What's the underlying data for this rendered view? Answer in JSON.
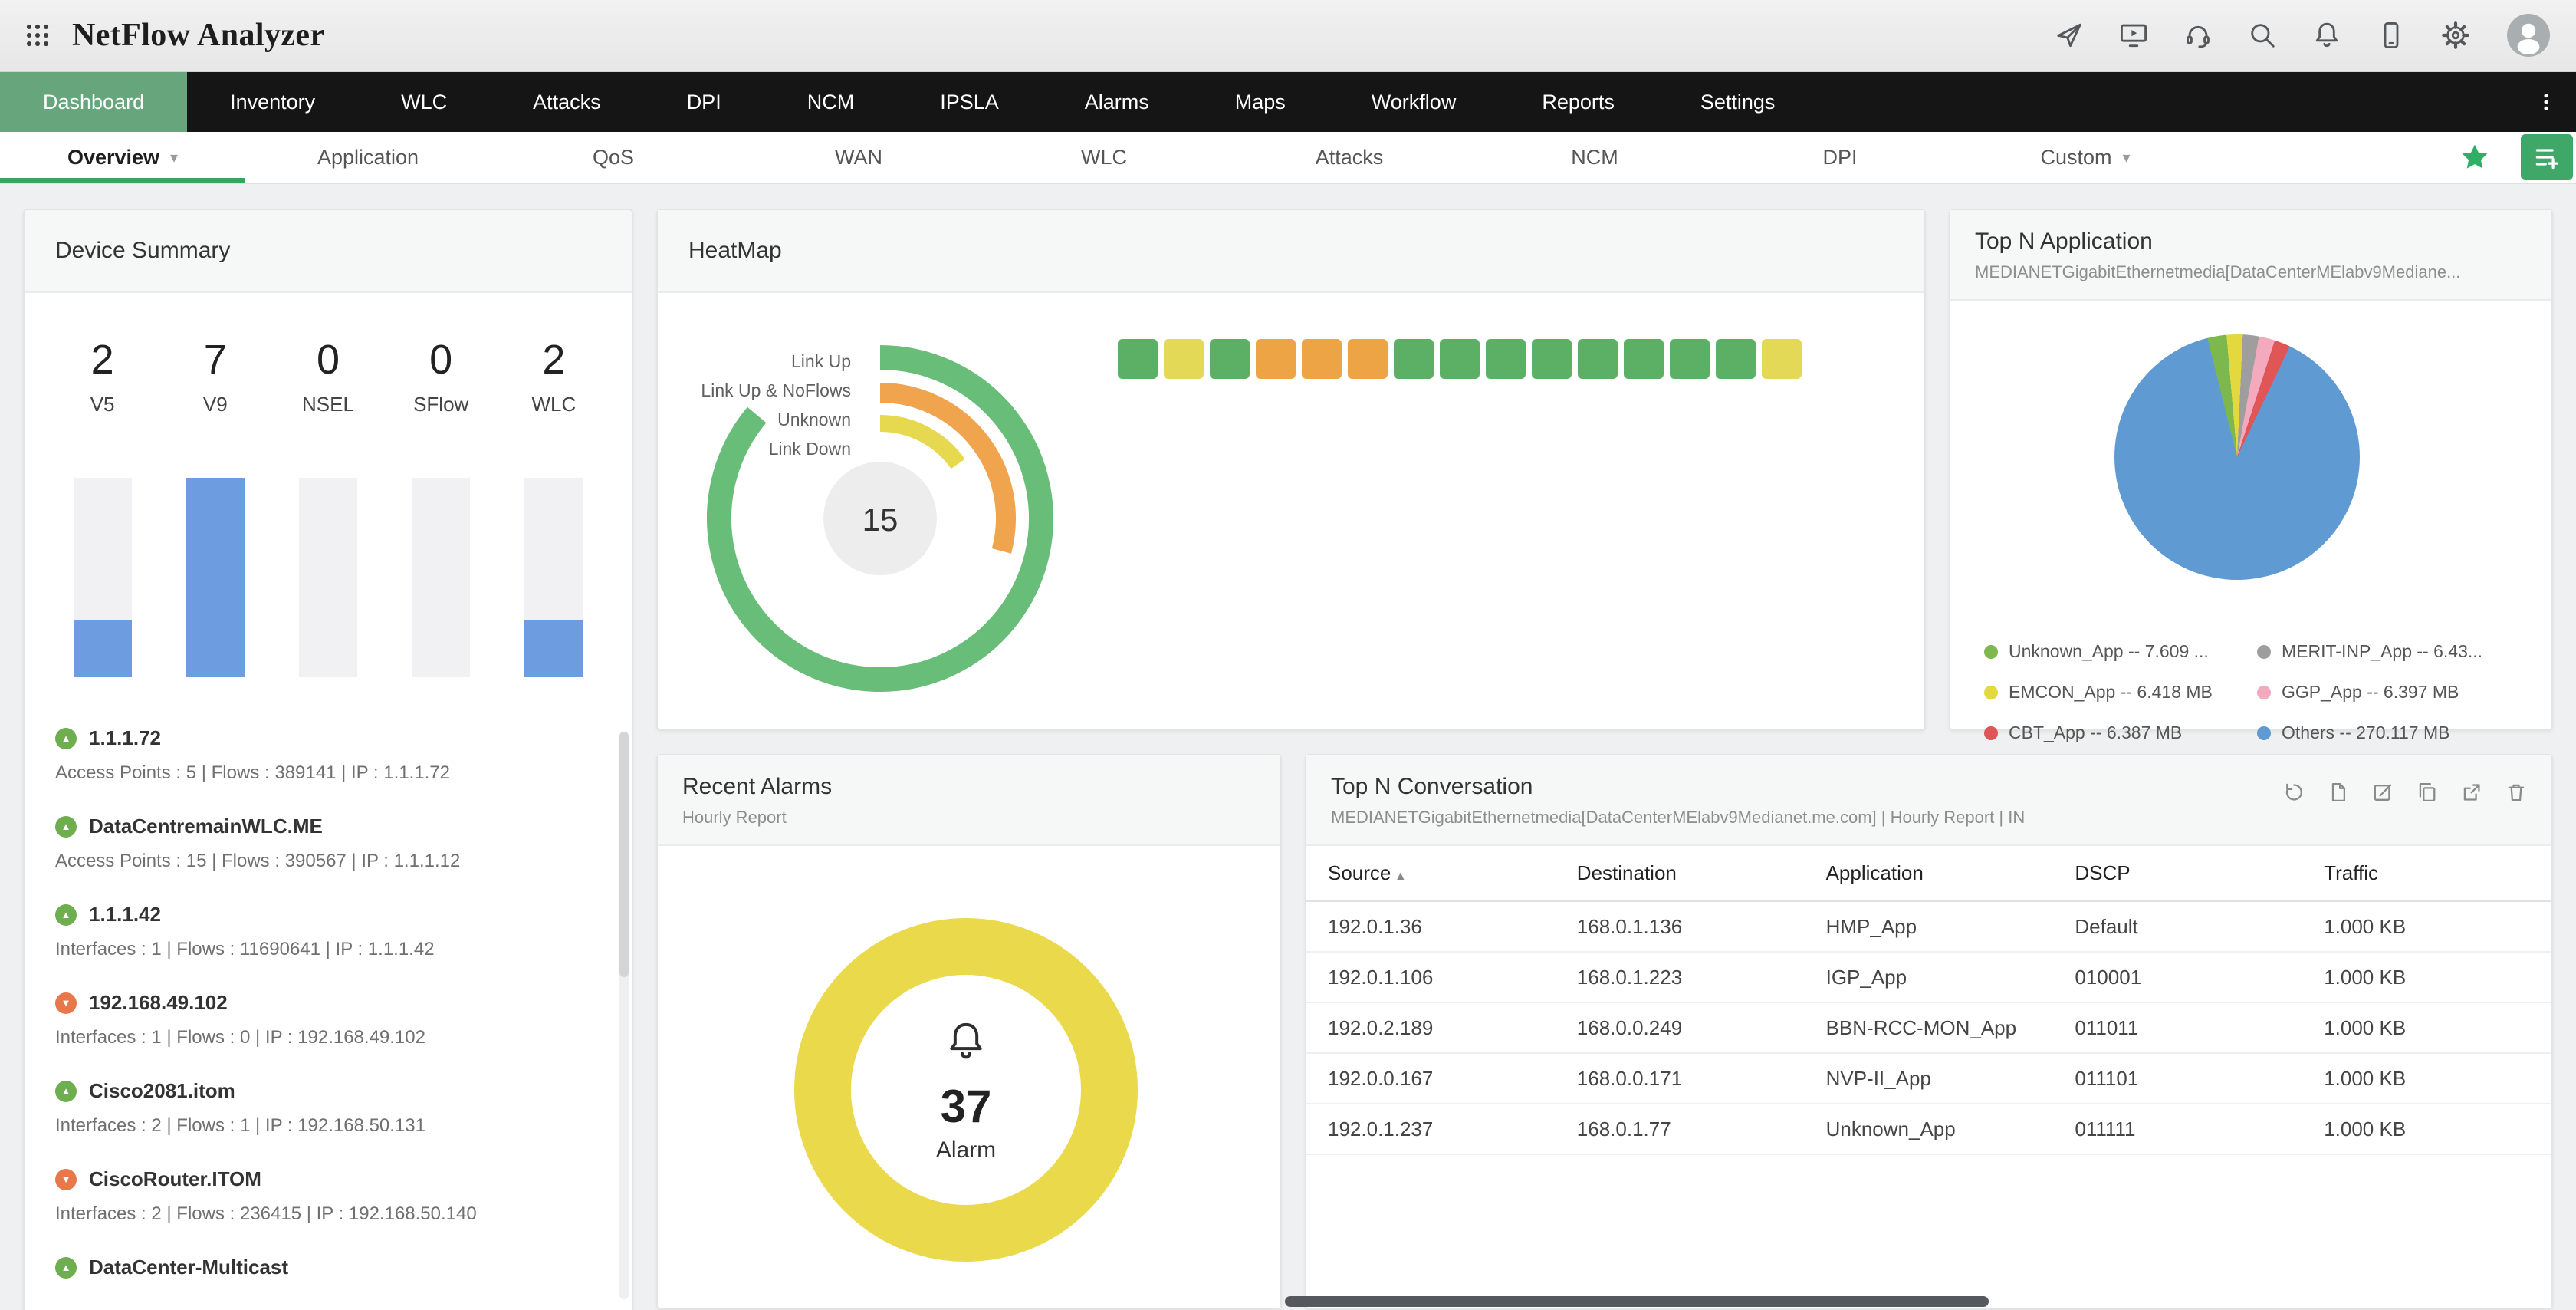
{
  "topbar": {
    "title": "NetFlow Analyzer",
    "icons": [
      "apps-grid",
      "whats-new",
      "demo",
      "support",
      "search",
      "notifications",
      "mobile-app",
      "settings",
      "user-avatar"
    ]
  },
  "mainnav": {
    "active": "Dashboard",
    "tabs": [
      "Dashboard",
      "Inventory",
      "WLC",
      "Attacks",
      "DPI",
      "NCM",
      "IPSLA",
      "Alarms",
      "Maps",
      "Workflow",
      "Reports",
      "Settings"
    ]
  },
  "subnav": {
    "tabs": [
      {
        "label": "Overview",
        "active": true,
        "chevron": true
      },
      {
        "label": "Application"
      },
      {
        "label": "QoS"
      },
      {
        "label": "WAN"
      },
      {
        "label": "WLC"
      },
      {
        "label": "Attacks"
      },
      {
        "label": "NCM"
      },
      {
        "label": "DPI"
      },
      {
        "label": "Custom",
        "chevron": true
      }
    ]
  },
  "device_summary": {
    "title": "Device Summary",
    "bar_color": "#6d9de0",
    "stats": [
      {
        "label": "V5",
        "value": 2
      },
      {
        "label": "V9",
        "value": 7
      },
      {
        "label": "NSEL",
        "value": 0
      },
      {
        "label": "SFlow",
        "value": 0
      },
      {
        "label": "WLC",
        "value": 2
      }
    ],
    "devices": [
      {
        "name": "1.1.1.72",
        "status": "up",
        "details": "Access Points : 5   |   Flows : 389141   |   IP : 1.1.1.72"
      },
      {
        "name": "DataCentremainWLC.ME",
        "status": "up",
        "details": "Access Points : 15   |   Flows : 390567   |   IP : 1.1.1.12"
      },
      {
        "name": "1.1.1.42",
        "status": "up",
        "details": "Interfaces : 1   |   Flows : 11690641   |   IP : 1.1.1.42"
      },
      {
        "name": "192.168.49.102",
        "status": "down",
        "details": "Interfaces : 1   |   Flows : 0   |   IP : 192.168.49.102"
      },
      {
        "name": "Cisco2081.itom",
        "status": "up",
        "details": "Interfaces : 2   |   Flows : 1   |   IP : 192.168.50.131"
      },
      {
        "name": "CiscoRouter.ITOM",
        "status": "down",
        "details": "Interfaces : 2   |   Flows : 236415   |   IP : 192.168.50.140"
      },
      {
        "name": "DataCenter-Multicast",
        "status": "up",
        "details": ""
      }
    ]
  },
  "heatmap": {
    "title": "HeatMap",
    "center_count": "15",
    "arcs": [
      {
        "label": "Link Up",
        "color": "#68bd78",
        "sweep": 310
      },
      {
        "label": "Link Up & NoFlows",
        "color": "#f0a44e",
        "sweep": 105
      },
      {
        "label": "Unknown",
        "color": "#e7d94f",
        "sweep": 55
      },
      {
        "label": "Link Down",
        "color": "#e05c5c",
        "sweep": 0
      }
    ],
    "cell_colors": {
      "up": "#5cb065",
      "warning": "#e4d957",
      "down": "#eca445"
    },
    "cells": [
      "up",
      "warning",
      "up",
      "down",
      "down",
      "down",
      "up",
      "up",
      "up",
      "up",
      "up",
      "up",
      "up",
      "up",
      "warning"
    ]
  },
  "top_app": {
    "title": "Top N Application",
    "subtitle": "MEDIANETGigabitEthernetmedia[DataCenterMElabv9Mediane...",
    "pie_start_deg": -14,
    "pie_order": [
      0,
      2,
      1,
      3,
      4,
      5
    ],
    "slices": [
      {
        "label": "Unknown_App -- 7.609 ...",
        "value": 7.609,
        "color": "#7cb84e"
      },
      {
        "label": "MERIT-INP_App -- 6.43...",
        "value": 6.43,
        "color": "#9e9e9e"
      },
      {
        "label": "EMCON_App -- 6.418 MB",
        "value": 6.418,
        "color": "#e3d93e"
      },
      {
        "label": "GGP_App -- 6.397 MB",
        "value": 6.397,
        "color": "#f3aabe"
      },
      {
        "label": "CBT_App -- 6.387 MB",
        "value": 6.387,
        "color": "#e05555"
      },
      {
        "label": "Others -- 270.117 MB",
        "value": 270.117,
        "color": "#5f9ad3"
      }
    ]
  },
  "recent_alarms": {
    "title": "Recent Alarms",
    "subtitle": "Hourly Report",
    "count": "37",
    "label": "Alarm",
    "ring_color": "#e9d94b"
  },
  "top_conversation": {
    "title": "Top N Conversation",
    "subtitle": "MEDIANETGigabitEthernetmedia[DataCenterMElabv9Medianet.me.com] | Hourly Report | IN",
    "toolbar_icons": [
      "history",
      "export",
      "edit",
      "copy",
      "popout",
      "delete"
    ],
    "columns": [
      "Source",
      "Destination",
      "Application",
      "DSCP",
      "Traffic"
    ],
    "sort_column": "Source",
    "rows": [
      [
        "192.0.1.36",
        "168.0.1.136",
        "HMP_App",
        "Default",
        "1.000 KB"
      ],
      [
        "192.0.1.106",
        "168.0.1.223",
        "IGP_App",
        "010001",
        "1.000 KB"
      ],
      [
        "192.0.2.189",
        "168.0.0.249",
        "BBN-RCC-MON_App",
        "011011",
        "1.000 KB"
      ],
      [
        "192.0.0.167",
        "168.0.0.171",
        "NVP-II_App",
        "011101",
        "1.000 KB"
      ],
      [
        "192.0.1.237",
        "168.0.1.77",
        "Unknown_App",
        "011111",
        "1.000 KB"
      ]
    ]
  }
}
